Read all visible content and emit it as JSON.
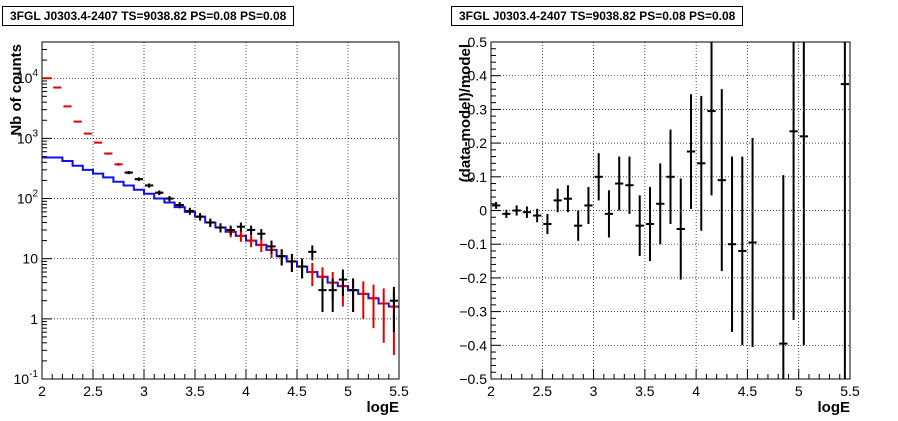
{
  "chart_data": [
    {
      "type": "histogram",
      "title": "3FGL J0303.4-2407 TS=9038.82 PS=0.08 PS=0.08",
      "xlabel": "logE",
      "ylabel": "Nb of counts",
      "xlim": [
        2,
        5.5
      ],
      "ylim": [
        0.1,
        40000
      ],
      "log_y": true,
      "grid": true,
      "x_ticks": [
        "2",
        "2.5",
        "3",
        "3.5",
        "4",
        "4.5",
        "5",
        "5.5"
      ],
      "y_ticks": [
        {
          "value": 0.1,
          "base": "10",
          "exp": "-1"
        },
        {
          "value": 1,
          "base": "1",
          "exp": ""
        },
        {
          "value": 10,
          "base": "10",
          "exp": ""
        },
        {
          "value": 100,
          "base": "10",
          "exp": "2"
        },
        {
          "value": 1000,
          "base": "10",
          "exp": "3"
        },
        {
          "value": 10000,
          "base": "10",
          "exp": "4"
        }
      ],
      "bin_edges": [
        2.0,
        2.1,
        2.2,
        2.3,
        2.4,
        2.5,
        2.6,
        2.7,
        2.8,
        2.9,
        3.0,
        3.1,
        3.2,
        3.3,
        3.4,
        3.5,
        3.6,
        3.7,
        3.8,
        3.9,
        4.0,
        4.1,
        4.2,
        4.3,
        4.4,
        4.5,
        4.6,
        4.7,
        4.8,
        4.9,
        5.0,
        5.1,
        5.2,
        5.3,
        5.4,
        5.5
      ],
      "series": [
        {
          "style": "step",
          "color": "#1010ee",
          "values": [
            480,
            480,
            420,
            350,
            300,
            260,
            225,
            190,
            165,
            140,
            120,
            100,
            86,
            72,
            60,
            50,
            40,
            33,
            28,
            24,
            20,
            17,
            14,
            11,
            9,
            7.4,
            6,
            5,
            4,
            3.5,
            3,
            2.6,
            2.2,
            1.8,
            1.6
          ]
        },
        {
          "style": "errorbar",
          "color": "#e00000",
          "x": [
            2.05,
            2.15,
            2.25,
            2.35,
            2.45,
            2.55,
            2.65,
            2.75,
            2.85,
            2.95,
            3.05,
            3.15,
            3.25,
            3.35,
            3.45,
            3.55,
            3.65,
            3.75,
            3.85,
            3.95,
            4.05,
            4.15,
            4.25,
            4.35,
            4.45,
            4.55,
            4.65,
            4.75,
            4.85,
            4.95,
            5.05,
            5.15,
            5.25,
            5.35,
            5.45
          ],
          "y": [
            10000,
            7000,
            3400,
            1900,
            1200,
            850,
            560,
            370,
            270,
            210,
            165,
            125,
            100,
            78,
            62,
            50,
            40,
            33,
            28,
            24,
            20,
            17,
            14,
            11,
            9,
            7.4,
            6,
            5,
            4,
            3.5,
            3,
            2.6,
            2.2,
            1.8,
            1.6
          ],
          "err_lo": [
            100,
            84,
            58,
            44,
            35,
            29,
            24,
            19,
            16,
            14,
            13,
            11,
            10,
            9,
            8,
            7,
            6.3,
            5.7,
            5.3,
            4.9,
            4.5,
            4.1,
            3.7,
            3.3,
            3,
            2.7,
            2.5,
            2.2,
            2,
            1.9,
            1.7,
            1.6,
            1.5,
            1.4,
            1.35
          ],
          "err_hi": [
            100,
            84,
            58,
            44,
            35,
            29,
            24,
            19,
            16,
            14,
            13,
            11,
            10,
            9,
            8,
            7,
            6.3,
            5.7,
            5.3,
            4.9,
            4.5,
            4.1,
            3.7,
            3.3,
            3,
            2.7,
            2.5,
            2.2,
            2,
            1.9,
            1.7,
            1.6,
            1.5,
            1.4,
            1.35
          ]
        },
        {
          "style": "errorbar",
          "color": "#000000",
          "x": [
            2.85,
            2.95,
            3.05,
            3.15,
            3.25,
            3.35,
            3.45,
            3.55,
            3.65,
            3.75,
            3.85,
            3.95,
            4.05,
            4.15,
            4.25,
            4.35,
            4.45,
            4.55,
            4.65,
            4.75,
            4.85,
            4.95,
            5.05,
            5.45
          ],
          "y": [
            270,
            210,
            165,
            125,
            100,
            78,
            62,
            50,
            40,
            33,
            30,
            34,
            30,
            26,
            16,
            11,
            9,
            7.4,
            13,
            3,
            3,
            4.5,
            3,
            2
          ],
          "err_lo": [
            16,
            14,
            13,
            11,
            10,
            9,
            8,
            7,
            6.3,
            5.7,
            5.5,
            5.8,
            5.5,
            5.1,
            4,
            3.3,
            3,
            2.7,
            3.6,
            1.7,
            1.7,
            2.1,
            1.7,
            1.4
          ],
          "err_hi": [
            16,
            14,
            13,
            11,
            10,
            9,
            8,
            7,
            6.3,
            5.7,
            5.5,
            5.8,
            5.5,
            5.1,
            4,
            3.3,
            3,
            2.7,
            3.6,
            1.7,
            1.7,
            2.1,
            1.7,
            1.4
          ]
        }
      ]
    },
    {
      "type": "scatter",
      "title": "3FGL J0303.4-2407 TS=9038.82 PS=0.08 PS=0.08",
      "xlabel": "logE",
      "ylabel": "(data-model)/model",
      "xlim": [
        2,
        5.5
      ],
      "ylim": [
        -0.5,
        0.5
      ],
      "grid": true,
      "x_ticks": [
        "2",
        "2.5",
        "3",
        "3.5",
        "4",
        "4.5",
        "5",
        "5.5"
      ],
      "y_ticks": [
        "−0.5",
        "−0.4",
        "−0.3",
        "−0.2",
        "−0.1",
        "0",
        "0.1",
        "0.2",
        "0.3",
        "0.4",
        "0.5"
      ],
      "series": [
        {
          "style": "errorbar",
          "color": "#000000",
          "x": [
            2.05,
            2.15,
            2.25,
            2.35,
            2.45,
            2.55,
            2.65,
            2.75,
            2.85,
            2.95,
            3.05,
            3.15,
            3.25,
            3.35,
            3.45,
            3.55,
            3.65,
            3.75,
            3.85,
            3.95,
            4.05,
            4.15,
            4.25,
            4.35,
            4.45,
            4.55,
            4.85,
            4.95,
            5.05,
            5.45
          ],
          "y": [
            0.015,
            -0.01,
            0.0,
            -0.005,
            -0.015,
            -0.04,
            0.03,
            0.035,
            -0.045,
            0.015,
            0.1,
            -0.01,
            0.08,
            0.075,
            -0.045,
            -0.04,
            0.02,
            0.1,
            -0.055,
            0.175,
            0.14,
            0.295,
            0.09,
            -0.1,
            -0.12,
            -0.095,
            -0.395,
            0.235,
            0.22,
            0.375
          ],
          "err_lo": [
            0.01,
            0.012,
            0.015,
            0.017,
            0.02,
            0.03,
            0.035,
            0.04,
            0.045,
            0.055,
            0.07,
            0.07,
            0.08,
            0.085,
            0.09,
            0.11,
            0.12,
            0.14,
            0.15,
            0.17,
            0.2,
            0.25,
            0.27,
            0.26,
            0.28,
            0.31,
            0.5,
            0.56,
            0.62,
            0.9
          ],
          "err_hi": [
            0.01,
            0.012,
            0.015,
            0.017,
            0.02,
            0.03,
            0.035,
            0.04,
            0.045,
            0.055,
            0.07,
            0.07,
            0.08,
            0.085,
            0.09,
            0.11,
            0.12,
            0.14,
            0.15,
            0.17,
            0.2,
            0.25,
            0.27,
            0.26,
            0.28,
            0.31,
            0.5,
            0.56,
            0.62,
            0.9
          ]
        }
      ]
    }
  ]
}
